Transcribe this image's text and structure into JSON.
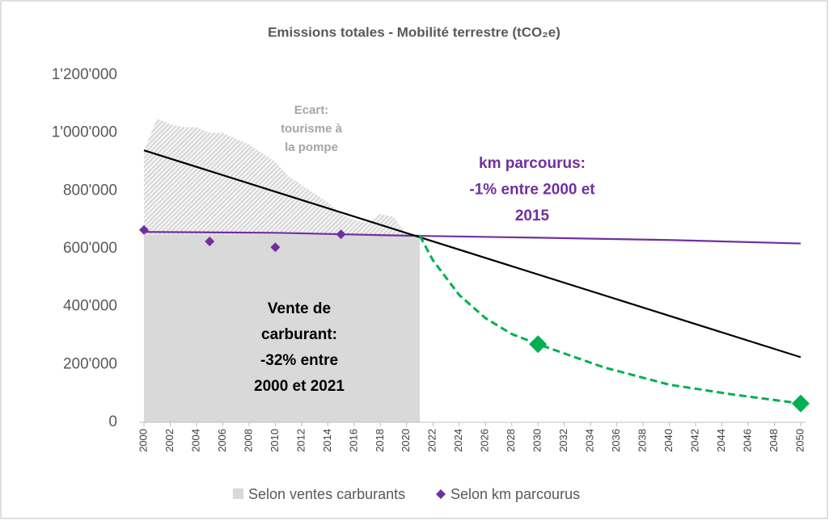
{
  "chart_data": {
    "type": "line",
    "title": "Emissions totales - Mobilité terrestre (tCO₂e)",
    "xlim": [
      2000,
      2050
    ],
    "xticks": [
      2000,
      2002,
      2004,
      2006,
      2008,
      2010,
      2012,
      2014,
      2016,
      2018,
      2020,
      2022,
      2024,
      2026,
      2028,
      2030,
      2032,
      2034,
      2036,
      2038,
      2040,
      2042,
      2044,
      2046,
      2048,
      2050
    ],
    "ylim": [
      0,
      1200000
    ],
    "yticks": [
      0,
      {
        "value": 200000,
        "label": "200'000"
      },
      {
        "value": 400000,
        "label": "400'000"
      },
      {
        "value": 600000,
        "label": "600'000"
      },
      {
        "value": 800000,
        "label": "800'000"
      },
      {
        "value": 1000000,
        "label": "1'000'000"
      },
      {
        "value": 1200000,
        "label": "1'200'000"
      }
    ],
    "series": [
      {
        "name": "Selon ventes carburants",
        "kind": "area",
        "color": "#d9d9d9",
        "x": [
          2000,
          2001,
          2002,
          2003,
          2004,
          2005,
          2006,
          2007,
          2008,
          2009,
          2010,
          2011,
          2012,
          2013,
          2014,
          2015,
          2016,
          2017,
          2018,
          2019,
          2020,
          2021
        ],
        "values": [
          650000,
          650000,
          650000,
          650000,
          650000,
          650000,
          650000,
          650000,
          650000,
          650000,
          650000,
          650000,
          650000,
          650000,
          650000,
          650000,
          650000,
          650000,
          650000,
          650000,
          650000,
          650000
        ]
      },
      {
        "kind": "hatched-area",
        "stacked": true,
        "color": "#a6a6a6",
        "x": [
          2000,
          2001,
          2002,
          2003,
          2004,
          2005,
          2006,
          2007,
          2008,
          2009,
          2010,
          2011,
          2012,
          2013,
          2014,
          2015,
          2016,
          2017,
          2018,
          2019,
          2020,
          2021
        ],
        "values": [
          290000,
          400000,
          380000,
          370000,
          370000,
          350000,
          350000,
          330000,
          310000,
          280000,
          250000,
          200000,
          170000,
          140000,
          110000,
          70000,
          50000,
          40000,
          70000,
          60000,
          0,
          0
        ]
      },
      {
        "kind": "line",
        "color": "#7030a0",
        "x": [
          2000,
          2010,
          2020,
          2030,
          2040,
          2050
        ],
        "values": [
          658000,
          655000,
          645000,
          638000,
          630000,
          618000
        ]
      },
      {
        "name": "Selon km parcourus",
        "kind": "scatter",
        "color": "#7030a0",
        "x": [
          2000,
          2005,
          2010,
          2015
        ],
        "values": [
          665000,
          625000,
          605000,
          650000
        ]
      },
      {
        "kind": "line",
        "color": "#000000",
        "x": [
          2000,
          2050
        ],
        "values": [
          940000,
          225000
        ]
      },
      {
        "kind": "line",
        "color": "#00b050",
        "dashed": true,
        "x": [
          2021,
          2022,
          2024,
          2026,
          2028,
          2030,
          2035,
          2040,
          2045,
          2050
        ],
        "values": [
          645000,
          560000,
          440000,
          360000,
          305000,
          270000,
          190000,
          130000,
          95000,
          65000
        ]
      },
      {
        "kind": "scatter",
        "color": "#00b050",
        "big": true,
        "x": [
          2030,
          2050
        ],
        "values": [
          270000,
          65000
        ]
      }
    ],
    "annotations": [
      {
        "lines": [
          "Ecart:",
          "tourisme à",
          "la pompe"
        ],
        "color": "#a6a6a6"
      },
      {
        "lines": [
          "km parcourus:",
          "-1% entre 2000 et",
          "2015"
        ],
        "color": "#7030a0"
      },
      {
        "lines": [
          "Vente de",
          "carburant:",
          "-32% entre",
          "2000 et 2021"
        ],
        "color": "#000000"
      }
    ]
  }
}
